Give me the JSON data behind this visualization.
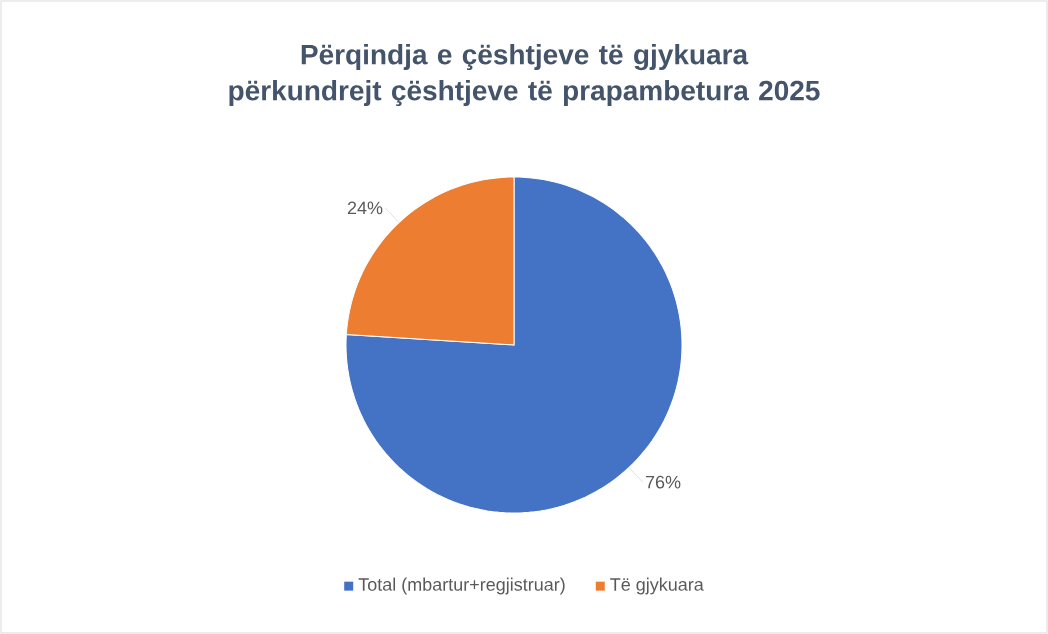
{
  "chart_data": {
    "type": "pie",
    "title": "Përqindja e çështjeve të gjykuara përkundrejt çështjeve të prapambetura 2025",
    "categories": [
      "Total (mbartur+regjistruar)",
      "Të gjykuara"
    ],
    "values": [
      76,
      24
    ],
    "colors": [
      "#4472c4",
      "#ed7d31"
    ],
    "value_labels": [
      "76%",
      "24%"
    ],
    "legend": "bottom"
  }
}
